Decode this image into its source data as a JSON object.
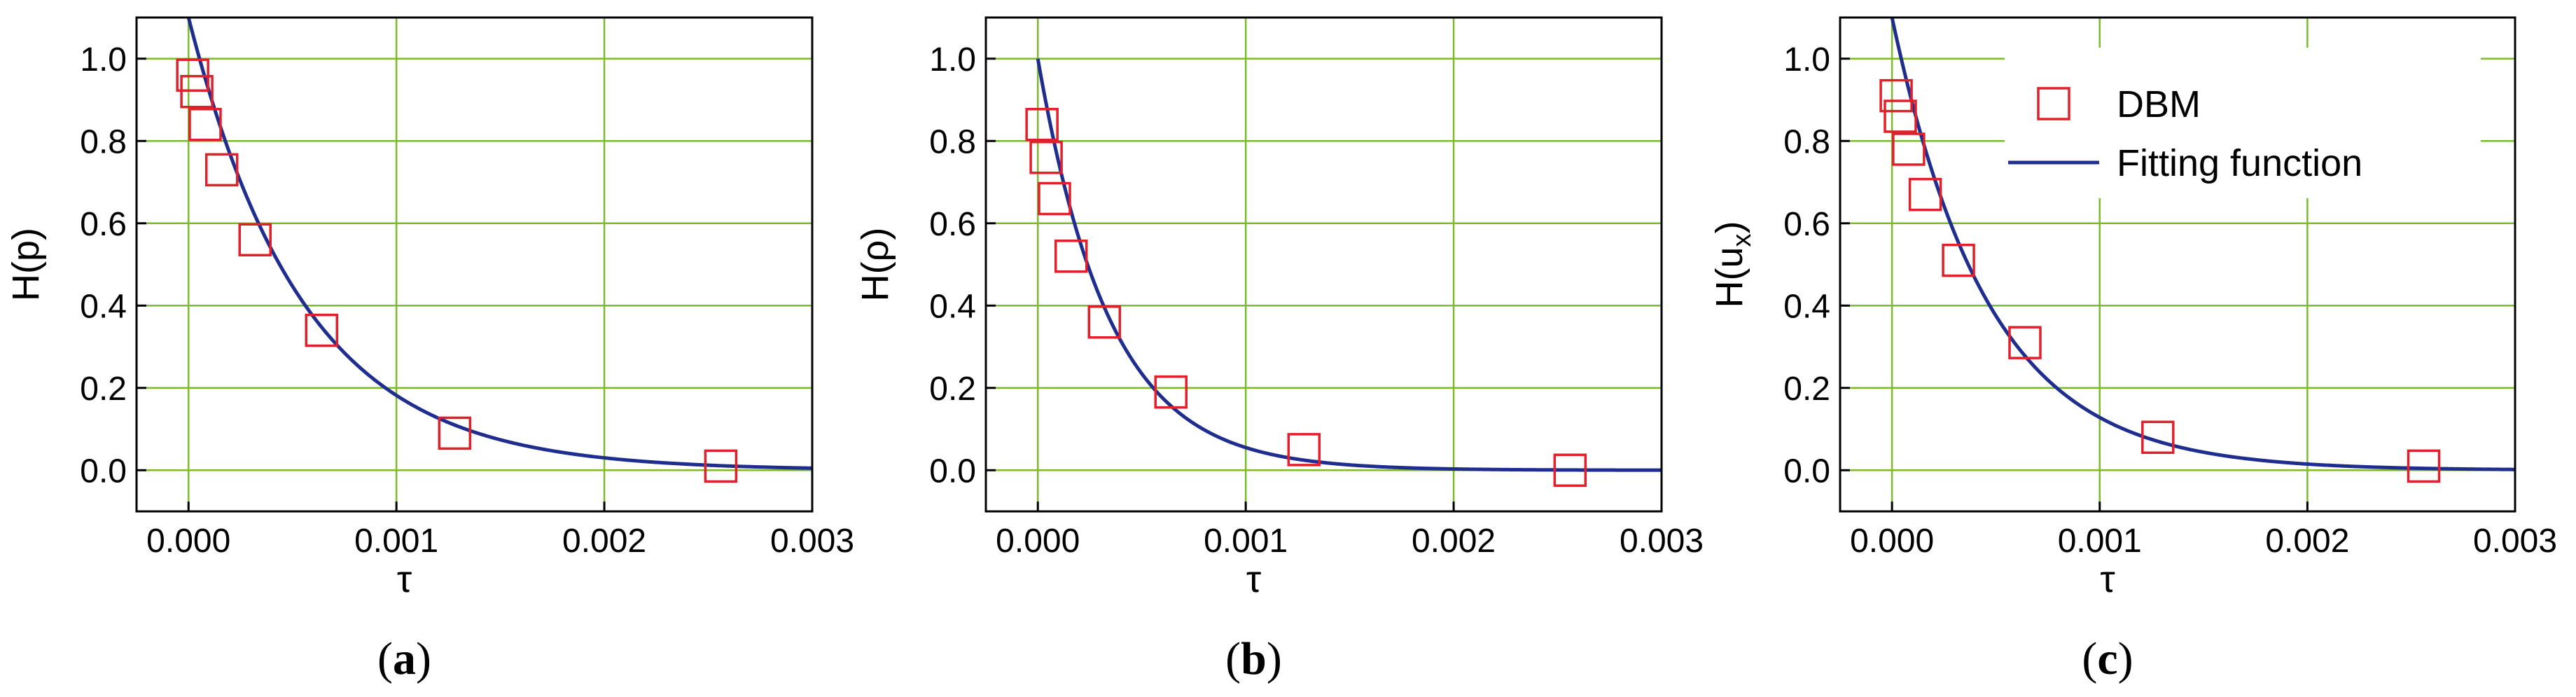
{
  "figure": {
    "colors": {
      "marker": "#e0202a",
      "fit_line": "#1f2d8f",
      "grid": "#7dbb2e",
      "axis": "#000000"
    }
  },
  "chart_data": [
    {
      "panel": "a",
      "type": "scatter",
      "panel_label": "a",
      "xlabel": "τ",
      "ylabel_main": "H(p)",
      "ylabel_sub": "",
      "xlim": [
        -0.00025,
        0.003
      ],
      "ylim": [
        -0.1,
        1.1
      ],
      "xticks": [
        0.0,
        0.001,
        0.002,
        0.003
      ],
      "xtick_labels": [
        "0.000",
        "0.001",
        "0.002",
        "0.003"
      ],
      "yticks": [
        0.0,
        0.2,
        0.4,
        0.6,
        0.8,
        1.0
      ],
      "ytick_labels": [
        "0.0",
        "0.2",
        "0.4",
        "0.6",
        "0.8",
        "1.0"
      ],
      "grid": true,
      "legend": null,
      "series": [
        {
          "kind": "marker",
          "legend_key": "DBM",
          "x": [
            2e-05,
            4e-05,
            8e-05,
            0.00016,
            0.00032,
            0.00064,
            0.00128,
            0.00256
          ],
          "y": [
            0.96,
            0.92,
            0.84,
            0.73,
            0.56,
            0.34,
            0.09,
            0.01
          ]
        },
        {
          "kind": "line",
          "legend_key": "Fitting function",
          "function": "exp",
          "amplitude": 1.1,
          "rate": 1800
        }
      ]
    },
    {
      "panel": "b",
      "type": "scatter",
      "panel_label": "b",
      "xlabel": "τ",
      "ylabel_main": "H(ρ)",
      "ylabel_sub": "",
      "xlim": [
        -0.00025,
        0.003
      ],
      "ylim": [
        -0.1,
        1.1
      ],
      "xticks": [
        0.0,
        0.001,
        0.002,
        0.003
      ],
      "xtick_labels": [
        "0.000",
        "0.001",
        "0.002",
        "0.003"
      ],
      "yticks": [
        0.0,
        0.2,
        0.4,
        0.6,
        0.8,
        1.0
      ],
      "ytick_labels": [
        "0.0",
        "0.2",
        "0.4",
        "0.6",
        "0.8",
        "1.0"
      ],
      "grid": true,
      "legend": null,
      "series": [
        {
          "kind": "marker",
          "legend_key": "DBM",
          "x": [
            2e-05,
            4e-05,
            8e-05,
            0.00016,
            0.00032,
            0.00064,
            0.00128,
            0.00256
          ],
          "y": [
            0.84,
            0.76,
            0.66,
            0.52,
            0.36,
            0.19,
            0.05,
            0.0
          ]
        },
        {
          "kind": "line",
          "legend_key": "Fitting function",
          "function": "exp",
          "amplitude": 1.0,
          "rate": 2900
        }
      ]
    },
    {
      "panel": "c",
      "type": "scatter",
      "panel_label": "c",
      "xlabel": "τ",
      "ylabel_main": "H(u",
      "ylabel_sub": "x",
      "ylabel_tail": ")",
      "xlim": [
        -0.00025,
        0.003
      ],
      "ylim": [
        -0.1,
        1.1
      ],
      "xticks": [
        0.0,
        0.001,
        0.002,
        0.003
      ],
      "xtick_labels": [
        "0.000",
        "0.001",
        "0.002",
        "0.003"
      ],
      "yticks": [
        0.0,
        0.2,
        0.4,
        0.6,
        0.8,
        1.0
      ],
      "ytick_labels": [
        "0.0",
        "0.2",
        "0.4",
        "0.6",
        "0.8",
        "1.0"
      ],
      "grid": true,
      "legend": {
        "placement": "top-right",
        "entries": [
          {
            "marker": "square",
            "label": "DBM"
          },
          {
            "marker": "line",
            "label": "Fitting function"
          }
        ]
      },
      "series": [
        {
          "kind": "marker",
          "legend_key": "DBM",
          "x": [
            2e-05,
            4e-05,
            8e-05,
            0.00016,
            0.00032,
            0.00064,
            0.00128,
            0.00256
          ],
          "y": [
            0.91,
            0.86,
            0.78,
            0.67,
            0.51,
            0.31,
            0.08,
            0.01
          ]
        },
        {
          "kind": "line",
          "legend_key": "Fitting function",
          "function": "exp",
          "amplitude": 1.1,
          "rate": 2150
        }
      ]
    }
  ]
}
